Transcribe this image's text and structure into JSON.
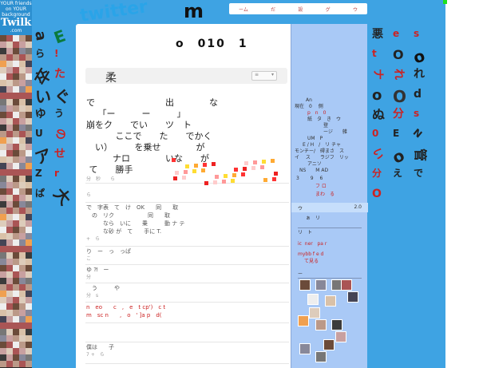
{
  "twilk_ad": {
    "line1": "YOUR friends",
    "line2": "on YOUR",
    "line3": "background",
    "logo": "Twilk",
    ".com": ".com"
  },
  "nav": {
    "items": [
      "ーム",
      "だ",
      "",
      "設",
      "グ",
      "ウ"
    ]
  },
  "main": {
    "title": "o　010　1",
    "bar": {
      "text": "柔",
      "select": "",
      "select_icon": "chevron-down-icon"
    },
    "tweets": [
      {
        "text": "で　　　　　　　　出　　　　な\n　 「ー　　　ー　　　」\n崩をク　　でい　　ツ　ト\n　　　 ここで　　た　　でかく\n　い）　　　を乗せ　　　　が\n　　　ナロ　　　　いな　　が\n て　　勝手",
        "meta": "分　秒　　ら"
      },
      {
        "text": "",
        "meta": "ら"
      },
      {
        "text": "で　字表　て　け　OK　　同　　取\n　の　リク　　　　　　同　　取\n　　　なら　いに　　乗　　　動 ナ テ\n　　　な砂 が　て　　手に T.",
        "meta": "+　ら"
      },
      {
        "text": "り　ー　っ　っぱ",
        "meta": "こ"
      },
      {
        "text": "ゆ ⁈　ー",
        "meta": "分"
      },
      {
        "text": "　う　　　や",
        "meta": "分　s"
      },
      {
        "text": "n　eo　　c　,　e　t cp')　c t\nm　sc n　　,　o　' ]a p　d(",
        "meta": ""
      },
      {
        "text": "僕は　　子",
        "meta": "7 +　ら"
      }
    ]
  },
  "sidebar": {
    "lines": [
      "An",
      "現在　0　 側",
      "p　n　0",
      "紙　タ　き　ウ",
      "登",
      "ージ　　雑",
      "UM　P",
      "E / H　/　リ チャ",
      "モンチー/　碍まさ　ス",
      "イ　 ス　　ラジフ　リッ",
      "アニソ",
      "NS　　M AD",
      "3　　 9　 6",
      "フ ロ",
      "まわ　る"
    ],
    "highlight": {
      "label": "ウ",
      "value": "2.0"
    },
    "after": [
      "ぁ　リ",
      "リ　ト",
      "ic  ner   pa r",
      "mybb f e d",
      "て見る",
      "ー"
    ]
  },
  "scatter": [
    "twitter",
    "m",
    "a",
    "E",
    "悪",
    "e",
    "s",
    "ら",
    "!",
    "t",
    "O",
    "o",
    "卒",
    "た",
    "ナ",
    "れ",
    "れ",
    "い",
    "ぐ",
    "o",
    "O",
    "d",
    "ゆ",
    "う",
    "ぬ",
    "分",
    "s",
    "U",
    "の",
    "0",
    "E",
    "N",
    "ア",
    "せ",
    "い",
    "o",
    "管",
    "Z",
    "r",
    "分",
    "え",
    "で",
    "ぱ",
    "大",
    "O"
  ],
  "colors": {
    "background": "#3ea3e3",
    "main": "#ffffff",
    "sidebar": "#a9c9f6",
    "accent_red": "#c22222"
  }
}
